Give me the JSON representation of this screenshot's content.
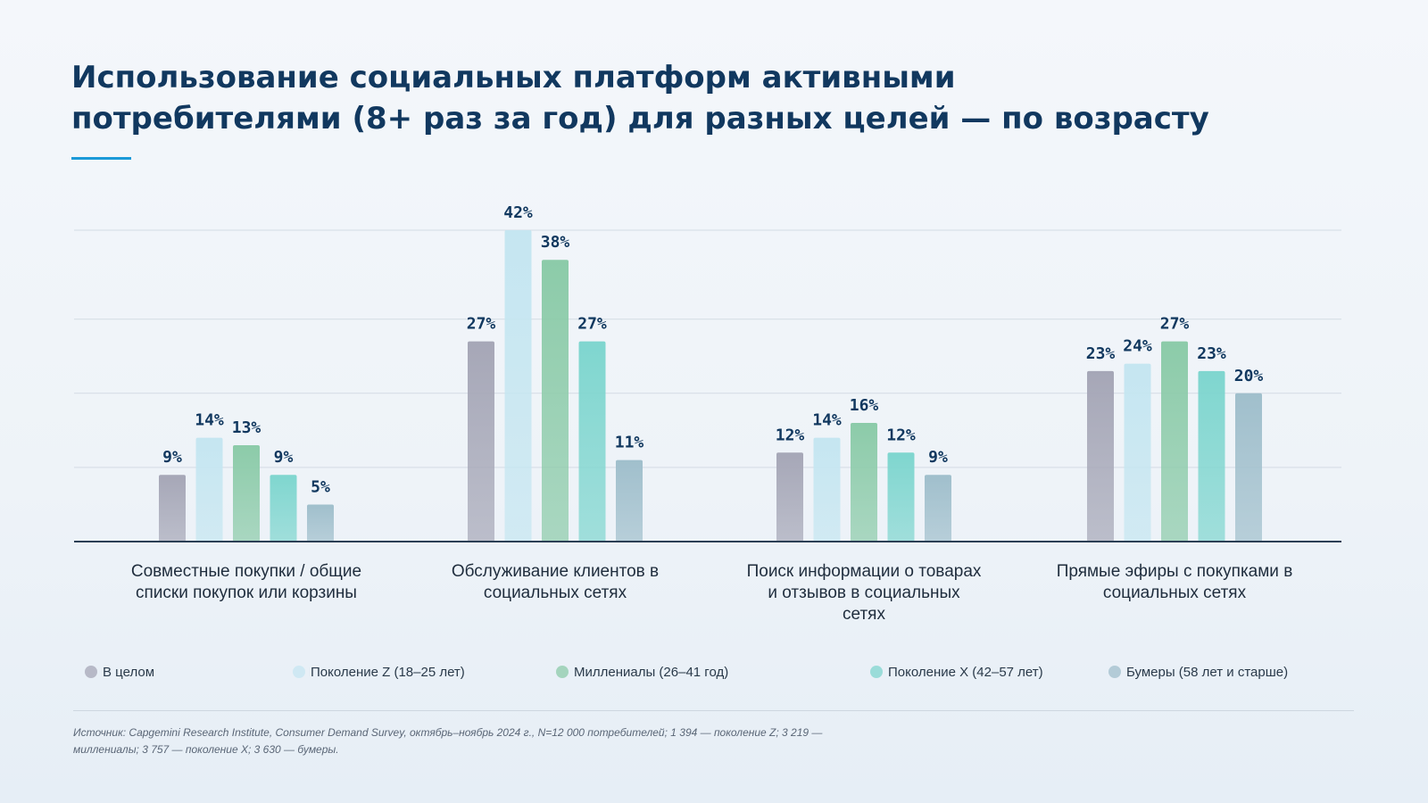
{
  "title_lines": [
    "Использование социальных платформ активными",
    "потребителями (8+ раз за год) для разных целей — по возрасту"
  ],
  "source": "Источник: Capgemini Research Institute, Consumer Demand Survey, октябрь–ноябрь 2024 г., N=12 000 потребителей; 1 394 — поколение Z; 3 219 — миллениалы; 3 757 — поколение X; 3 630 — бумеры.",
  "colors": {
    "title": "#11385f",
    "accent": "#1b9ad8",
    "axis": "#2b3f55"
  },
  "chart_data": {
    "type": "bar",
    "title": "",
    "xlabel": "",
    "ylabel": "",
    "ylim": [
      0,
      42
    ],
    "grid": true,
    "legend_position": "bottom",
    "categories": [
      [
        "Совместные покупки / общие",
        "списки покупок или корзины"
      ],
      [
        "Обслуживание клиентов в",
        "социальных сетях"
      ],
      [
        "Поиск информации о товарах",
        "и отзывов в социальных",
        "сетях"
      ],
      [
        "Прямые эфиры с покупками в",
        "социальных сетях"
      ]
    ],
    "series": [
      {
        "name": "В целом",
        "color": "#a6a7b7",
        "values": [
          9,
          27,
          12,
          23
        ],
        "labels": [
          "9%",
          "27%",
          "12%",
          "23%"
        ]
      },
      {
        "name": "Поколение Z (18–25 лет)",
        "color": "#c5e6f1",
        "values": [
          14,
          42,
          14,
          24
        ],
        "labels": [
          "14%",
          "42%",
          "14%",
          "24%"
        ]
      },
      {
        "name": "Миллениалы (26–41 год)",
        "color": "#8ccba9",
        "values": [
          13,
          38,
          16,
          27
        ],
        "labels": [
          "13%",
          "38%",
          "16%",
          "27%"
        ]
      },
      {
        "name": "Поколение X (42–57 лет)",
        "color": "#7fd6cf",
        "values": [
          9,
          27,
          12,
          23
        ],
        "labels": [
          "9%",
          "27%",
          "12%",
          "23%"
        ]
      },
      {
        "name": "Бумеры (58 лет и старше)",
        "color": "#a0bfcc",
        "values": [
          5,
          11,
          9,
          20
        ],
        "labels": [
          "5%",
          "11%",
          "9%",
          "20%"
        ]
      }
    ]
  }
}
